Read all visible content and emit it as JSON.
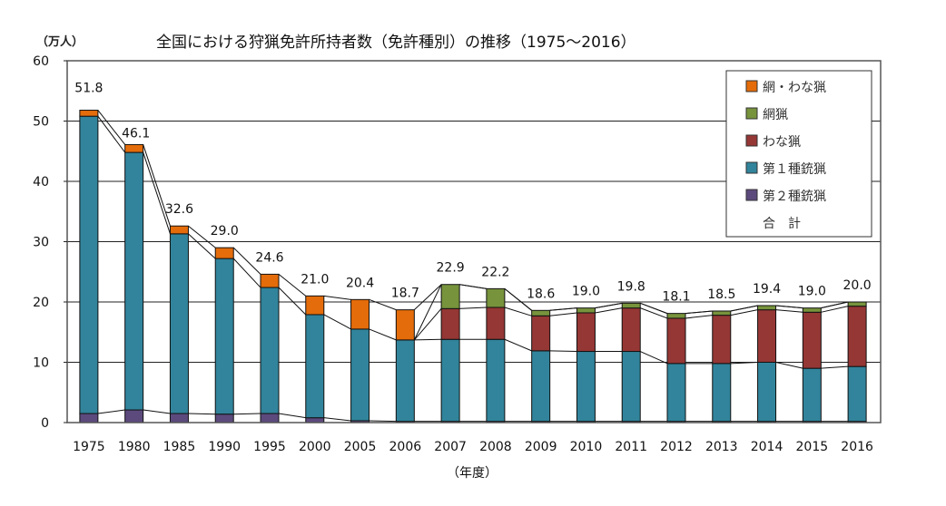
{
  "chart_data": {
    "type": "bar",
    "stacked": true,
    "title": "全国における狩猟免許所持者数（免許種別）の推移（1975～2016）",
    "ylabel": "（万人）",
    "xlabel": "（年度）",
    "ylim": [
      0,
      60
    ],
    "yticks": [
      "0",
      "10",
      "20",
      "30",
      "40",
      "50",
      "60"
    ],
    "grid": true,
    "legend_position": "top-right",
    "categories": [
      "1975",
      "1980",
      "1985",
      "1990",
      "1995",
      "2000",
      "2005",
      "2006",
      "2007",
      "2008",
      "2009",
      "2010",
      "2011",
      "2012",
      "2013",
      "2014",
      "2015",
      "2016"
    ],
    "series": [
      {
        "name": "第２種銃猟",
        "color": "#5c4a7d",
        "values": [
          1.5,
          2.1,
          1.5,
          1.4,
          1.5,
          0.8,
          0.3,
          0.2,
          0.2,
          0.2,
          0.2,
          0.2,
          0.2,
          0.2,
          0.2,
          0.2,
          0.2,
          0.2
        ]
      },
      {
        "name": "第１種銃猟",
        "color": "#31849b",
        "values": [
          49.3,
          42.7,
          29.8,
          25.8,
          20.9,
          17.1,
          15.2,
          13.5,
          13.6,
          13.6,
          11.7,
          11.6,
          11.6,
          9.6,
          9.6,
          9.8,
          8.8,
          9.1
        ]
      },
      {
        "name": "わな猟",
        "color": "#953735",
        "values": [
          0,
          0,
          0,
          0,
          0,
          0,
          0,
          0,
          5.1,
          5.3,
          5.8,
          6.4,
          7.2,
          7.5,
          8.0,
          8.7,
          9.3,
          10.0
        ]
      },
      {
        "name": "網猟",
        "color": "#77933c",
        "values": [
          0,
          0,
          0,
          0,
          0,
          0,
          0,
          0,
          4.0,
          3.1,
          0.9,
          0.8,
          0.8,
          0.8,
          0.7,
          0.7,
          0.7,
          0.7
        ]
      },
      {
        "name": "網・わな猟",
        "color": "#e46c0a",
        "values": [
          1.0,
          1.3,
          1.3,
          1.8,
          2.2,
          3.1,
          4.9,
          5.0,
          0,
          0,
          0,
          0,
          0,
          0,
          0,
          0,
          0,
          0
        ]
      }
    ],
    "totals": {
      "name": "合　計",
      "values": [
        51.8,
        46.1,
        32.6,
        29.0,
        24.6,
        21.0,
        20.4,
        18.7,
        22.9,
        22.2,
        18.6,
        19.0,
        19.8,
        18.1,
        18.5,
        19.4,
        19.0,
        20.0
      ],
      "labels": [
        "51.8",
        "46.1",
        "32.6",
        "29.0",
        "24.6",
        "21.0",
        "20.4",
        "18.7",
        "22.9",
        "22.2",
        "18.6",
        "19.0",
        "19.8",
        "18.1",
        "18.5",
        "19.4",
        "19.0",
        "20.0"
      ]
    },
    "legend_order": [
      "網・わな猟",
      "網猟",
      "わな猟",
      "第１種銃猟",
      "第２種銃猟",
      "合　計"
    ]
  }
}
